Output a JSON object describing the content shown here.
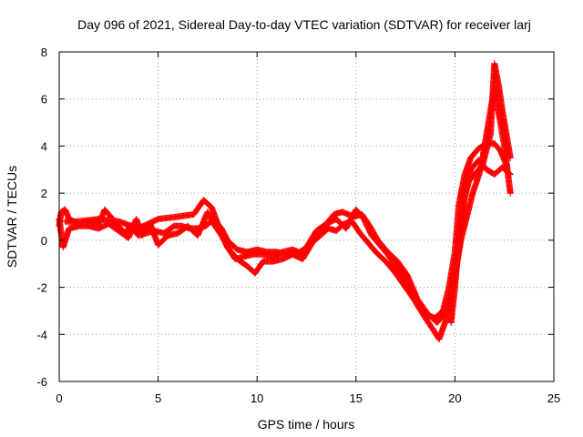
{
  "chart_data": {
    "type": "scatter",
    "title": "Day 096 of 2021, Sidereal Day-to-day VTEC variation (SDTVAR) for receiver larj",
    "xlabel": "GPS time / hours",
    "ylabel": "SDTVAR / TECUs",
    "xlim": [
      0,
      25
    ],
    "ylim": [
      -6,
      8
    ],
    "xticks": [
      0,
      5,
      10,
      15,
      20,
      25
    ],
    "yticks": [
      -6,
      -4,
      -2,
      0,
      2,
      4,
      6,
      8
    ],
    "grid": true,
    "marker": "+",
    "series": [
      {
        "name": "SDTVAR",
        "color": "#ff0000",
        "tracks": [
          [
            [
              0.0,
              0.6
            ],
            [
              0.1,
              1.2
            ],
            [
              0.3,
              1.3
            ],
            [
              0.5,
              0.9
            ],
            [
              1.0,
              0.7
            ],
            [
              1.5,
              0.8
            ],
            [
              2.0,
              0.7
            ],
            [
              2.3,
              1.3
            ],
            [
              2.6,
              1.0
            ],
            [
              3.0,
              0.6
            ],
            [
              3.3,
              0.3
            ],
            [
              3.6,
              0.6
            ],
            [
              4.0,
              0.2
            ],
            [
              4.4,
              0.3
            ],
            [
              4.8,
              0.4
            ],
            [
              5.3,
              0.3
            ],
            [
              5.8,
              0.6
            ],
            [
              6.2,
              0.6
            ],
            [
              6.6,
              0.5
            ],
            [
              7.0,
              0.5
            ],
            [
              7.4,
              0.6
            ],
            [
              7.8,
              0.9
            ],
            [
              8.2,
              0.5
            ],
            [
              8.5,
              0.0
            ],
            [
              9.0,
              -0.4
            ],
            [
              9.5,
              -0.5
            ],
            [
              10.0,
              -0.4
            ],
            [
              10.5,
              -0.5
            ],
            [
              11.0,
              -0.5
            ],
            [
              11.5,
              -0.6
            ],
            [
              12.0,
              -0.6
            ],
            [
              12.5,
              -0.3
            ],
            [
              13.0,
              0.4
            ],
            [
              13.5,
              0.7
            ],
            [
              14.0,
              0.9
            ],
            [
              14.5,
              0.5
            ],
            [
              15.0,
              1.3
            ],
            [
              15.4,
              0.9
            ],
            [
              15.8,
              0.2
            ],
            [
              16.2,
              -0.2
            ],
            [
              16.6,
              -0.6
            ],
            [
              17.0,
              -1.1
            ],
            [
              17.4,
              -1.6
            ],
            [
              17.8,
              -2.3
            ],
            [
              18.2,
              -2.9
            ],
            [
              18.6,
              -3.2
            ],
            [
              19.0,
              -3.3
            ],
            [
              19.4,
              -3.0
            ],
            [
              19.7,
              -2.0
            ],
            [
              20.0,
              -0.5
            ],
            [
              20.2,
              1.5
            ],
            [
              20.5,
              2.8
            ],
            [
              20.8,
              3.5
            ],
            [
              21.2,
              3.9
            ],
            [
              21.6,
              4.1
            ],
            [
              22.0,
              4.1
            ],
            [
              22.3,
              3.8
            ],
            [
              22.6,
              3.2
            ]
          ],
          [
            [
              0.0,
              0.9
            ],
            [
              0.2,
              -0.3
            ],
            [
              0.5,
              0.5
            ],
            [
              1.0,
              0.6
            ],
            [
              1.5,
              0.6
            ],
            [
              2.0,
              0.5
            ],
            [
              2.5,
              0.7
            ],
            [
              3.0,
              0.4
            ],
            [
              3.5,
              0.1
            ],
            [
              3.9,
              0.9
            ],
            [
              4.2,
              0.2
            ],
            [
              4.6,
              0.7
            ],
            [
              5.0,
              -0.2
            ],
            [
              5.5,
              0.2
            ],
            [
              6.0,
              0.3
            ],
            [
              6.5,
              0.6
            ],
            [
              7.0,
              0.2
            ],
            [
              7.5,
              1.2
            ],
            [
              7.8,
              0.7
            ],
            [
              8.2,
              0.2
            ],
            [
              8.6,
              -0.4
            ],
            [
              9.0,
              -0.8
            ],
            [
              9.5,
              -1.1
            ],
            [
              9.9,
              -1.4
            ],
            [
              10.3,
              -0.9
            ],
            [
              10.8,
              -0.9
            ],
            [
              11.3,
              -0.8
            ],
            [
              11.8,
              -0.6
            ],
            [
              12.3,
              -0.8
            ],
            [
              12.8,
              -0.1
            ],
            [
              13.2,
              0.2
            ],
            [
              13.6,
              0.5
            ],
            [
              14.0,
              0.4
            ],
            [
              14.4,
              0.7
            ],
            [
              14.8,
              0.8
            ],
            [
              15.2,
              0.3
            ],
            [
              15.6,
              -0.1
            ],
            [
              16.0,
              -0.5
            ],
            [
              16.5,
              -0.9
            ],
            [
              17.0,
              -1.4
            ],
            [
              17.5,
              -2.0
            ],
            [
              18.0,
              -2.6
            ],
            [
              18.5,
              -3.3
            ],
            [
              18.9,
              -3.8
            ],
            [
              19.2,
              -4.2
            ],
            [
              19.5,
              -3.5
            ],
            [
              19.8,
              -2.5
            ],
            [
              20.1,
              -1.0
            ],
            [
              20.3,
              0.5
            ],
            [
              20.5,
              2.0
            ],
            [
              20.8,
              3.0
            ],
            [
              21.2,
              3.4
            ],
            [
              21.6,
              3.0
            ],
            [
              22.0,
              2.8
            ],
            [
              22.4,
              3.1
            ],
            [
              22.8,
              2.8
            ]
          ],
          [
            [
              0.3,
              0.8
            ],
            [
              1.0,
              0.8
            ],
            [
              2.0,
              0.9
            ],
            [
              3.0,
              0.8
            ],
            [
              4.0,
              0.5
            ],
            [
              5.0,
              0.9
            ],
            [
              6.0,
              1.0
            ],
            [
              6.8,
              1.1
            ],
            [
              7.3,
              1.7
            ],
            [
              7.7,
              1.4
            ],
            [
              8.1,
              0.5
            ],
            [
              8.5,
              -0.3
            ],
            [
              8.9,
              -0.8
            ],
            [
              9.3,
              -0.7
            ],
            [
              9.8,
              -0.6
            ],
            [
              10.3,
              -0.6
            ],
            [
              10.8,
              -0.7
            ],
            [
              11.3,
              -0.5
            ],
            [
              11.8,
              -0.4
            ],
            [
              12.4,
              -0.6
            ],
            [
              12.9,
              0.1
            ],
            [
              13.4,
              0.6
            ],
            [
              13.9,
              1.1
            ],
            [
              14.3,
              1.2
            ],
            [
              14.9,
              1.0
            ],
            [
              15.3,
              1.1
            ],
            [
              15.7,
              0.6
            ],
            [
              16.1,
              0.0
            ],
            [
              16.6,
              -0.5
            ],
            [
              17.1,
              -0.9
            ],
            [
              17.6,
              -1.5
            ],
            [
              18.1,
              -2.5
            ],
            [
              18.6,
              -3.1
            ],
            [
              19.1,
              -3.5
            ],
            [
              19.6,
              -3.0
            ],
            [
              20.0,
              -1.5
            ],
            [
              20.3,
              0.0
            ],
            [
              20.6,
              1.0
            ],
            [
              20.9,
              2.0
            ],
            [
              21.3,
              3.0
            ],
            [
              21.7,
              5.0
            ],
            [
              22.0,
              6.5
            ],
            [
              22.2,
              5.5
            ],
            [
              22.5,
              4.0
            ],
            [
              22.8,
              2.0
            ]
          ],
          [
            [
              19.8,
              -3.5
            ],
            [
              20.0,
              -2.0
            ],
            [
              20.2,
              0.0
            ],
            [
              20.4,
              1.5
            ],
            [
              20.7,
              2.5
            ],
            [
              21.0,
              2.8
            ],
            [
              21.4,
              3.2
            ],
            [
              21.8,
              4.5
            ],
            [
              22.0,
              7.5
            ],
            [
              22.2,
              6.6
            ],
            [
              22.4,
              5.5
            ],
            [
              22.6,
              4.5
            ],
            [
              22.8,
              3.5
            ]
          ]
        ]
      }
    ]
  }
}
